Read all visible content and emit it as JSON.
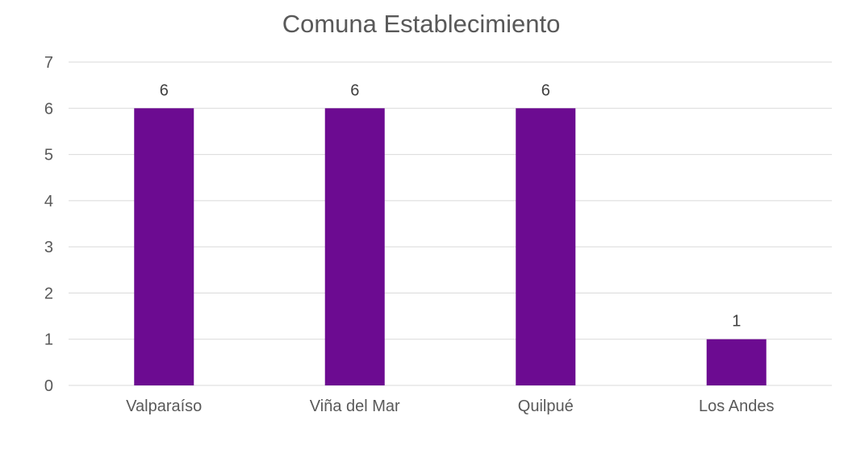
{
  "chart_data": {
    "type": "bar",
    "title": "Comuna Establecimiento",
    "xlabel": "",
    "ylabel": "",
    "categories": [
      "Valparaíso",
      "Viña del Mar",
      "Quilpué",
      "Los Andes"
    ],
    "values": [
      6,
      6,
      6,
      1
    ],
    "data_labels": [
      "6",
      "6",
      "6",
      "1"
    ],
    "ylim": [
      0,
      7
    ],
    "yticks": [
      0,
      1,
      2,
      3,
      4,
      5,
      6,
      7
    ],
    "ytick_labels": [
      "0",
      "1",
      "2",
      "3",
      "4",
      "5",
      "6",
      "7"
    ],
    "grid": true,
    "legend": "none",
    "bar_color": "#6c0b91"
  }
}
